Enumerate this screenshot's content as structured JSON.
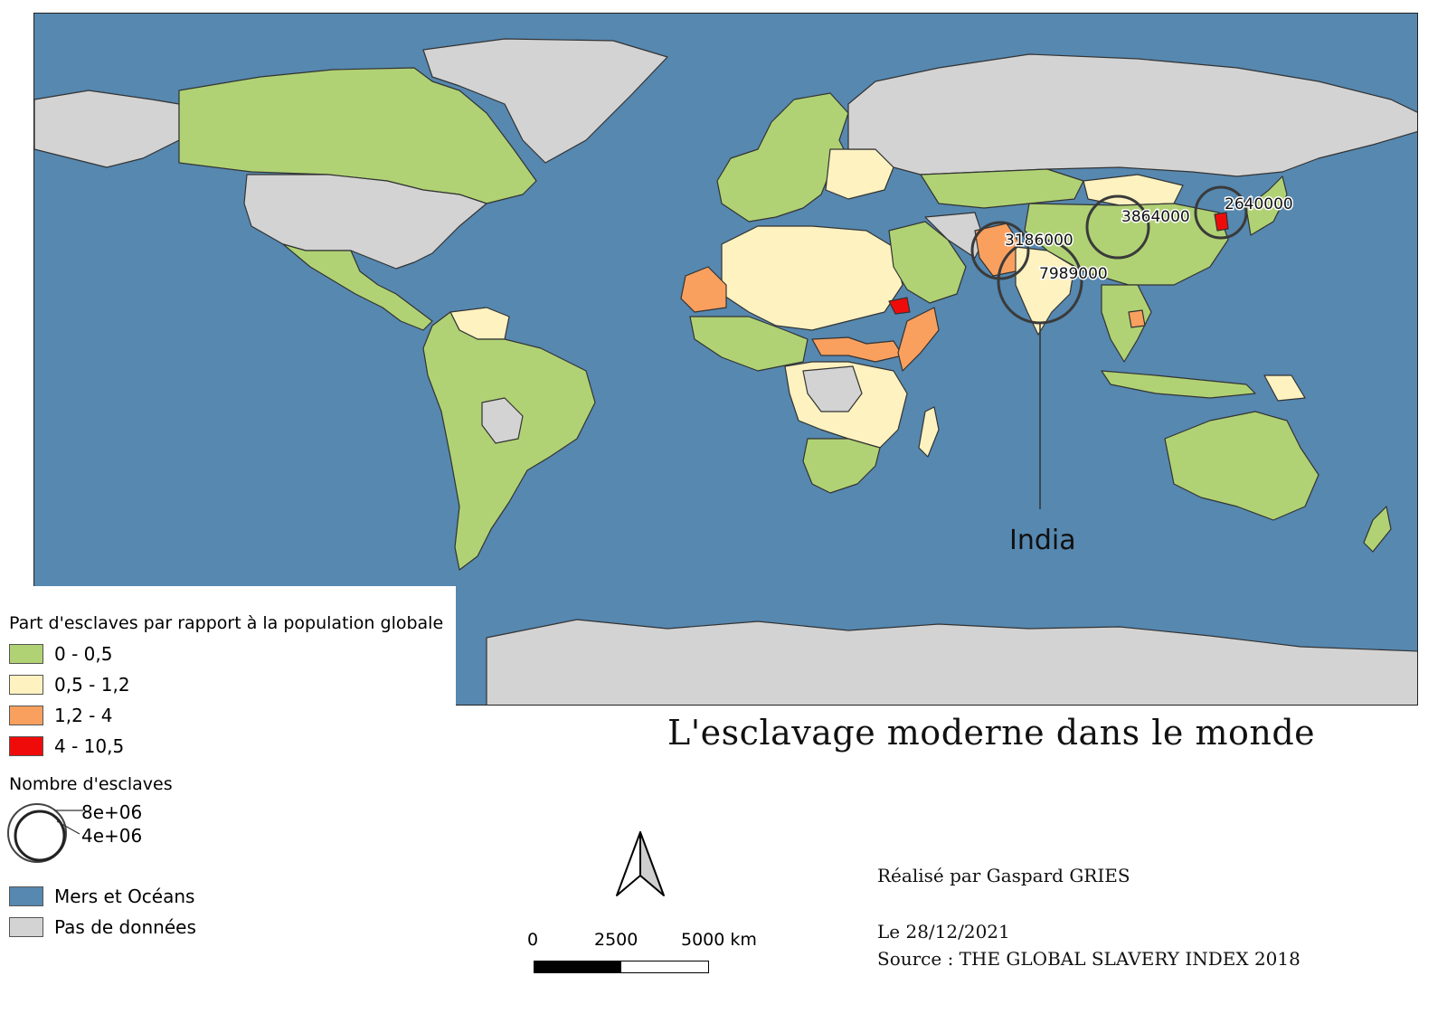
{
  "title": "L'esclavage moderne dans le monde",
  "legend": {
    "choropleth_title": "Part d'esclaves par rapport à la population globale",
    "classes": [
      {
        "label": "0 - 0,5",
        "color": "#b0d274"
      },
      {
        "label": "0,5 - 1,2",
        "color": "#fef2c0"
      },
      {
        "label": "1,2 - 4",
        "color": "#f9a05f"
      },
      {
        "label": "4 - 10,5",
        "color": "#f00b0b"
      }
    ],
    "circles_title": "Nombre d'esclaves",
    "circle_labels": [
      "8e+06",
      "4e+06"
    ],
    "sea_label": "Mers et Océans",
    "sea_color": "#5688b0",
    "nodata_label": "Pas de données",
    "nodata_color": "#d3d3d3"
  },
  "map": {
    "annotations": [
      {
        "label": "3864000",
        "value": 3864000
      },
      {
        "label": "2640000",
        "value": 2640000
      },
      {
        "label": "3186000",
        "value": 3186000
      },
      {
        "label": "7989000",
        "value": 7989000
      }
    ],
    "callout": "India"
  },
  "scale_bar": {
    "labels": [
      "0",
      "2500",
      "5000 km"
    ]
  },
  "credits": {
    "author": "Réalisé par Gaspard GRIES",
    "date": "Le 28/12/2021",
    "source": "Source : THE GLOBAL SLAVERY INDEX 2018"
  }
}
